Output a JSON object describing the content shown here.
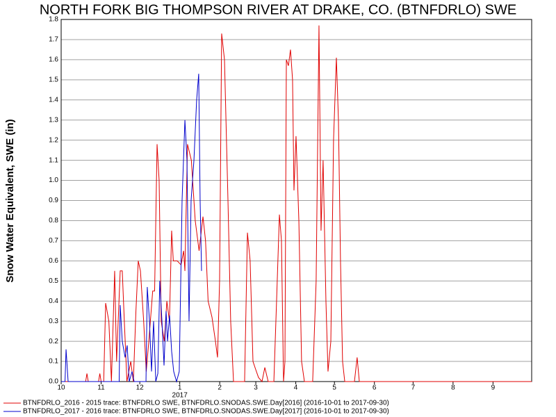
{
  "chart_data": {
    "type": "line",
    "title": "NORTH FORK BIG THOMPSON RIVER AT DRAKE, CO. (BTNFDRLO) SWE",
    "y_label": "Snow Water Equivalent, SWE (in)",
    "x_year_label": "2017",
    "xlim": [
      0,
      365
    ],
    "xticks": [
      {
        "value": 0,
        "label": "10"
      },
      {
        "value": 31,
        "label": "11"
      },
      {
        "value": 61,
        "label": "12"
      },
      {
        "value": 92,
        "label": "1"
      },
      {
        "value": 123,
        "label": "2"
      },
      {
        "value": 151,
        "label": "3"
      },
      {
        "value": 182,
        "label": "4"
      },
      {
        "value": 212,
        "label": "5"
      },
      {
        "value": 243,
        "label": "6"
      },
      {
        "value": 273,
        "label": "7"
      },
      {
        "value": 304,
        "label": "8"
      },
      {
        "value": 335,
        "label": "9"
      }
    ],
    "ylim": [
      0,
      1.8
    ],
    "yticks": [
      {
        "value": 0,
        "label": "0.0"
      },
      0.1,
      0.2,
      0.3,
      0.4,
      0.5,
      0.6,
      0.7,
      0.8,
      0.9,
      {
        "value": 1,
        "label": "1.0"
      },
      1.1,
      1.2,
      1.3,
      1.4,
      1.5,
      1.6,
      1.7,
      1.8
    ],
    "grid": true,
    "series": [
      {
        "name": "BTNFDRLO_2016 - 2015 trace: BTNFDRLO SWE, BTNFDRLO.SNODAS.SWE.Day[2016] (2016-10-01 to 2017-09-30)",
        "color": "#e00000",
        "x": [
          0,
          19,
          20,
          21,
          29,
          30,
          31,
          33,
          34.5,
          37,
          39,
          41.5,
          43,
          45.8,
          47.4,
          49,
          51,
          54,
          56,
          58,
          59.8,
          61.5,
          64,
          66,
          68,
          71,
          72.5,
          74.4,
          76,
          77.6,
          80,
          82,
          84,
          85.7,
          87,
          90,
          93,
          95,
          96,
          98,
          101,
          104,
          107,
          110,
          112,
          114,
          117,
          119.7,
          121.3,
          122.9,
          124.5,
          126.7,
          129.4,
          131.5,
          133.7,
          142.3,
          144.5,
          146.6,
          148.8,
          150.9,
          153.1,
          155.8,
          158,
          160.6,
          165,
          167.1,
          169.3,
          170.9,
          172.5,
          173.6,
          174.7,
          176.3,
          177.9,
          179.5,
          180.6,
          182.2,
          184.4,
          186.5,
          188.7,
          195.1,
          197.8,
          200,
          201.6,
          203.2,
          205.4,
          207,
          209.2,
          211.3,
          213.5,
          215.1,
          216.7,
          218.3,
          220,
          227.5,
          229.6,
          231.3,
          365
        ],
        "values": [
          0,
          0,
          0.04,
          0,
          0,
          0.04,
          0,
          0,
          0.39,
          0.3,
          0,
          0.55,
          0.1,
          0.55,
          0.55,
          0.3,
          0,
          0.1,
          0,
          0.35,
          0.6,
          0.55,
          0.3,
          0.05,
          0.2,
          0.45,
          0.45,
          1.18,
          1.0,
          0.3,
          0.2,
          0.4,
          0.3,
          0.75,
          0.6,
          0.6,
          0.58,
          0.65,
          0.55,
          1.18,
          1.1,
          0.8,
          0.65,
          0.82,
          0.7,
          0.4,
          0.32,
          0.2,
          0.12,
          0.5,
          1.73,
          1.6,
          0.9,
          0.3,
          0,
          0,
          0.74,
          0.6,
          0.1,
          0.06,
          0.02,
          0,
          0.07,
          0,
          0,
          0.4,
          0.83,
          0.7,
          0,
          0.1,
          1.6,
          1.57,
          1.65,
          1.5,
          0.95,
          1.22,
          0.8,
          0.1,
          0,
          0,
          0.5,
          1.77,
          0.75,
          1.1,
          0.4,
          0.05,
          0.2,
          1.2,
          1.61,
          1.3,
          0.6,
          0.1,
          0,
          0,
          0.12,
          0,
          0
        ]
      },
      {
        "name": "BTNFDRLO_2017 - 2016 trace: BTNFDRLO SWE, BTNFDRLO.SNODAS.SWE.Day[2017] (2016-10-01 to 2017-09-30)",
        "color": "#0000cc",
        "x": [
          0,
          3,
          3.8,
          5.4,
          45,
          45.8,
          47.4,
          49.6,
          51.2,
          52.8,
          55,
          56.6,
          65.8,
          66.8,
          68.5,
          70.1,
          71.7,
          73.4,
          75,
          76.5,
          78.2,
          79.8,
          81.4,
          82.5,
          84.1,
          85.7,
          87.3,
          89.5,
          91.6,
          93.8,
          96,
          97.6,
          99.2,
          100.8,
          103,
          105.1,
          106.7,
          107.8,
          108.9
        ],
        "values": [
          0,
          0,
          0.16,
          0,
          0,
          0.38,
          0.2,
          0.12,
          0.18,
          0,
          0.05,
          0,
          0,
          0.47,
          0.3,
          0.05,
          0.3,
          0,
          0.04,
          0.5,
          0.3,
          0.08,
          0.35,
          0.2,
          0.33,
          0.15,
          0.05,
          0,
          0.05,
          0.9,
          1.3,
          1.1,
          0.3,
          0.9,
          1.1,
          1.4,
          1.53,
          0.9,
          0.55
        ]
      }
    ]
  }
}
